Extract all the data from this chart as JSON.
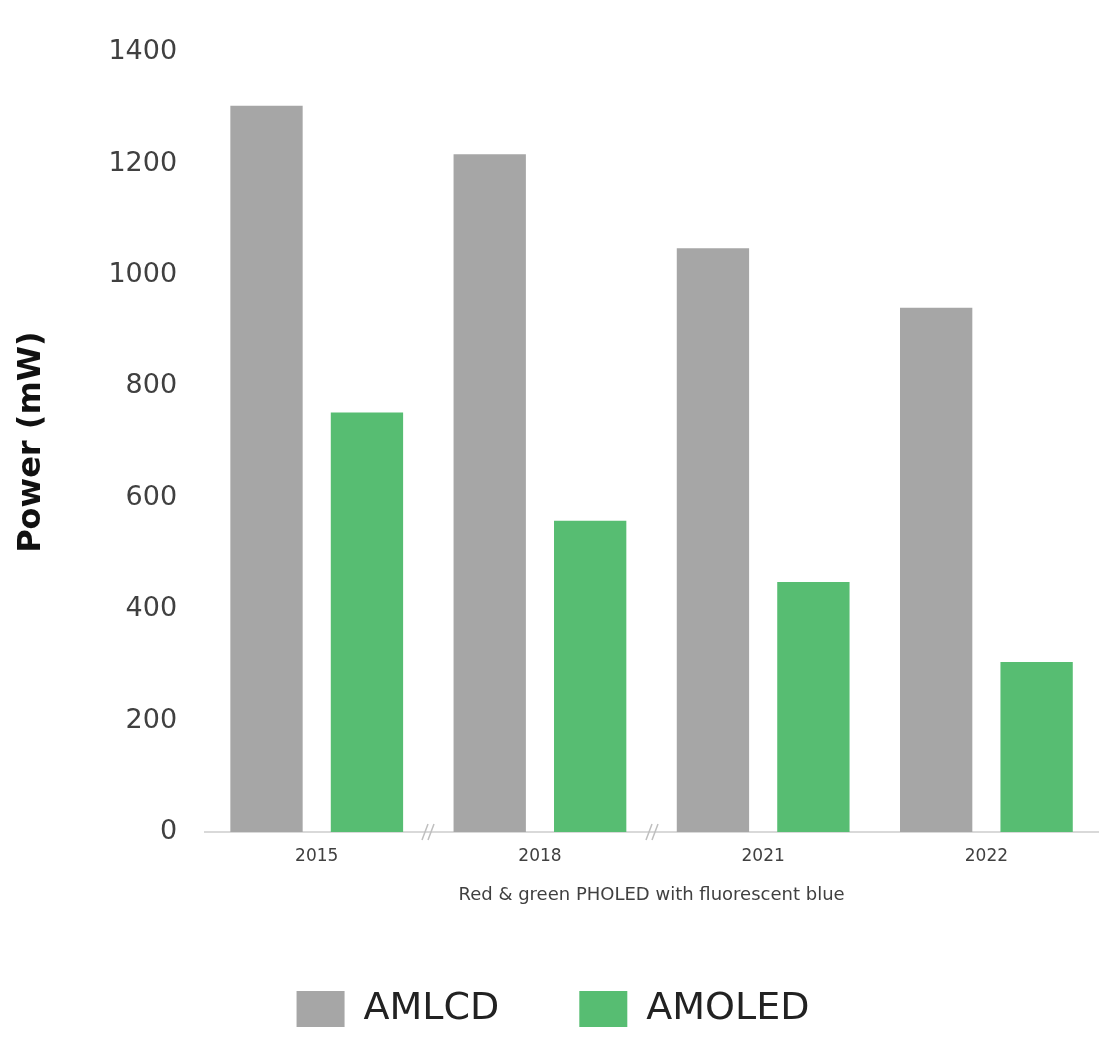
{
  "chart_data": {
    "type": "bar",
    "ylabel": "Power (mW)",
    "xlabel": "Red & green PHOLED with fluorescent blue",
    "categories": [
      "2015",
      "2018",
      "2021",
      "2022"
    ],
    "series": [
      {
        "name": "AMLCD",
        "color": "#a6a6a6",
        "values": [
          1304,
          1217,
          1048,
          941
        ]
      },
      {
        "name": "AMOLED",
        "color": "#57bd72",
        "values": [
          753,
          559,
          449,
          305
        ]
      }
    ],
    "ylim": [
      0,
      1400
    ],
    "yticks": [
      0,
      200,
      400,
      600,
      800,
      1000,
      1200,
      1400
    ],
    "grid": false,
    "legend": "bottom"
  }
}
